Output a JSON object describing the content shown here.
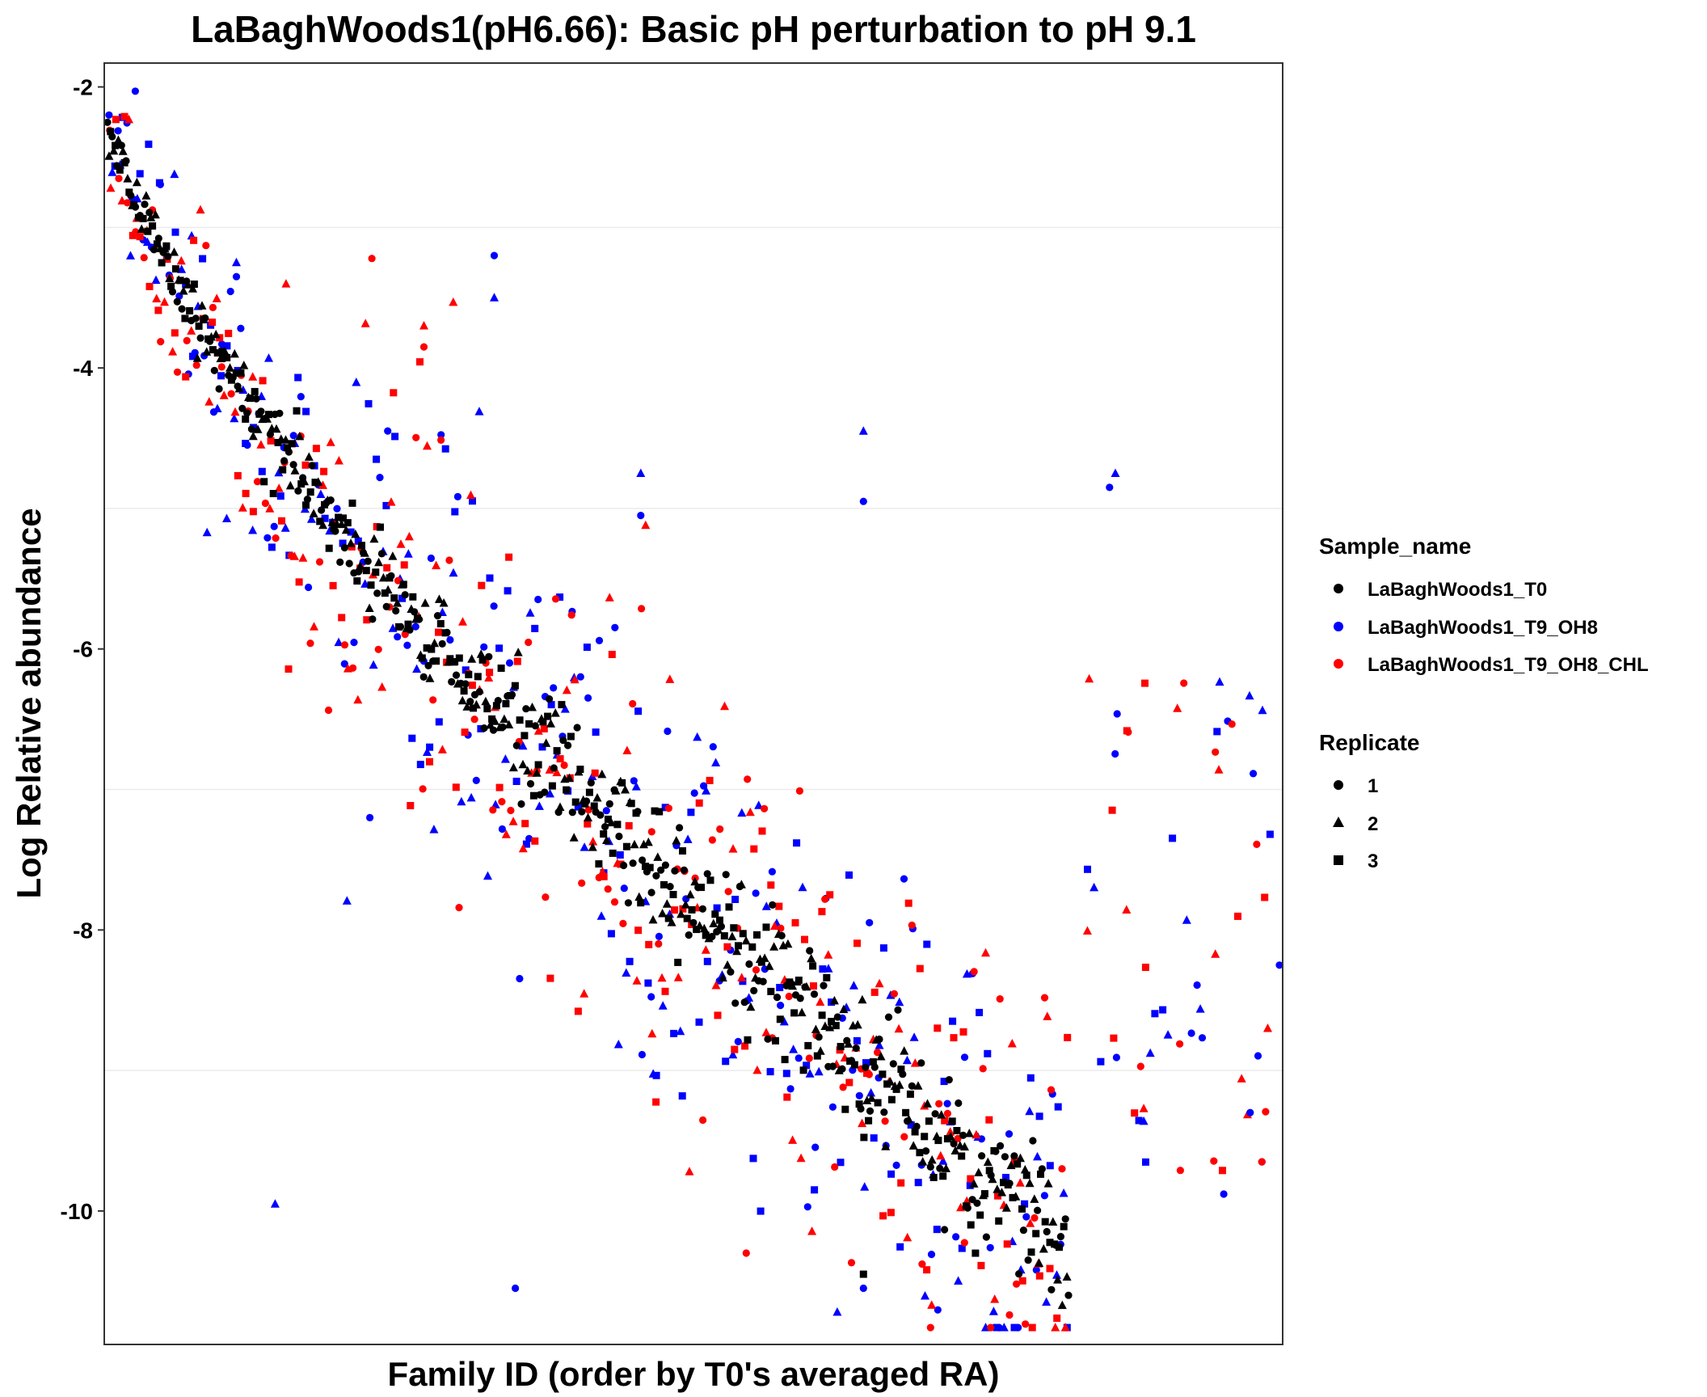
{
  "chart_data": {
    "type": "scatter",
    "title": "LaBaghWoods1(pH6.66): Basic pH perturbation to pH 9.1",
    "xlabel": "Family ID (order by T0's averaged RA)",
    "ylabel": "Log Relative abundance",
    "xlim": [
      0,
      1000
    ],
    "ylim": [
      -10.95,
      -1.83
    ],
    "yticks": [
      -2,
      -4,
      -6,
      -8,
      -10
    ],
    "ytick_labels": [
      "-2",
      "-4",
      "-6",
      "-8",
      "-10"
    ],
    "x_ticks_shown": false,
    "grid": "horizontal minor lines at -3, -5, -7, -9",
    "legend": {
      "placement": "right",
      "color_title": "Sample_name",
      "color_entries": [
        {
          "label": "LaBaghWoods1_T0",
          "color": "#000000"
        },
        {
          "label": "LaBaghWoods1_T9_OH8",
          "color": "#0000ff"
        },
        {
          "label": "LaBaghWoods1_T9_OH8_CHL",
          "color": "#ff0000"
        }
      ],
      "shape_title": "Replicate",
      "shape_entries": [
        {
          "label": "1",
          "shape": "circle"
        },
        {
          "label": "2",
          "shape": "triangle"
        },
        {
          "label": "3",
          "shape": "square"
        }
      ]
    },
    "series": [
      {
        "name": "LaBaghWoods1_T0",
        "color": "#000000",
        "trend": "points follow the T0 ordering line from about -2.3 at the left to about -10.2 at the right, tight spread of about ±0.35",
        "x_range": [
          0,
          820
        ],
        "y_start": -2.3,
        "y_end": -10.2
      },
      {
        "name": "LaBaghWoods1_T9_OH8",
        "color": "#0000ff",
        "trend": "follows the same descending trend with wide scatter (about ±1.5), outliers as low as -10.5 and as high as -3.2",
        "x_range": [
          0,
          1000
        ],
        "y_start": -2.5,
        "y_end": -10.0
      },
      {
        "name": "LaBaghWoods1_T9_OH8_CHL",
        "color": "#ff0000",
        "trend": "follows the same descending trend with wide scatter (about ±1.5), outliers as low as -10.4 and as high as -3.7",
        "x_range": [
          0,
          1000
        ],
        "y_start": -2.5,
        "y_end": -10.0
      }
    ],
    "outliers": [
      {
        "series": "LaBaghWoods1_T9_OH8",
        "x": 110,
        "y": -3.25,
        "shape": "triangle"
      },
      {
        "series": "LaBaghWoods1_T9_OH8",
        "x": 110,
        "y": -3.35,
        "shape": "circle"
      },
      {
        "series": "LaBaghWoods1_T9_OH8",
        "x": 330,
        "y": -3.2,
        "shape": "circle"
      },
      {
        "series": "LaBaghWoods1_T9_OH8",
        "x": 330,
        "y": -3.5,
        "shape": "triangle"
      },
      {
        "series": "LaBaghWoods1_T9_OH8_CHL",
        "x": 270,
        "y": -3.7,
        "shape": "triangle"
      },
      {
        "series": "LaBaghWoods1_T9_OH8_CHL",
        "x": 270,
        "y": -3.85,
        "shape": "circle"
      },
      {
        "series": "LaBaghWoods1_T9_OH8",
        "x": 645,
        "y": -4.45,
        "shape": "triangle"
      },
      {
        "series": "LaBaghWoods1_T9_OH8",
        "x": 645,
        "y": -4.95,
        "shape": "circle"
      },
      {
        "series": "LaBaghWoods1_T9_OH8",
        "x": 455,
        "y": -4.75,
        "shape": "triangle"
      },
      {
        "series": "LaBaghWoods1_T9_OH8",
        "x": 455,
        "y": -5.05,
        "shape": "circle"
      },
      {
        "series": "LaBaghWoods1_T9_OH8",
        "x": 860,
        "y": -4.75,
        "shape": "triangle"
      },
      {
        "series": "LaBaghWoods1_T9_OH8",
        "x": 855,
        "y": -4.85,
        "shape": "circle"
      },
      {
        "series": "LaBaghWoods1_T9_OH8",
        "x": 1000,
        "y": -8.25,
        "shape": "circle"
      },
      {
        "series": "LaBaghWoods1_T9_OH8",
        "x": 985,
        "y": -9.65,
        "shape": "circle"
      },
      {
        "series": "LaBaghWoods1_T9_OH8_CHL",
        "x": 985,
        "y": -9.65,
        "shape": "circle"
      },
      {
        "series": "LaBaghWoods1_T9_OH8_CHL",
        "x": 990,
        "y": -8.7,
        "shape": "triangle"
      },
      {
        "series": "LaBaghWoods1_T9_OH8",
        "x": 975,
        "y": -9.3,
        "shape": "circle"
      },
      {
        "series": "LaBaghWoods1_T9_OH8",
        "x": 348,
        "y": -10.55,
        "shape": "circle"
      },
      {
        "series": "LaBaghWoods1_T9_OH8",
        "x": 645,
        "y": -10.55,
        "shape": "circle"
      },
      {
        "series": "LaBaghWoods1_T0",
        "x": 645,
        "y": -10.45,
        "shape": "square"
      },
      {
        "series": "LaBaghWoods1_T0",
        "x": 820,
        "y": -10.6,
        "shape": "circle"
      },
      {
        "series": "LaBaghWoods1_T9_OH8_CHL",
        "x": 545,
        "y": -10.3,
        "shape": "circle"
      },
      {
        "series": "LaBaghWoods1_T9_OH8",
        "x": 143,
        "y": -9.95,
        "shape": "triangle"
      }
    ]
  }
}
